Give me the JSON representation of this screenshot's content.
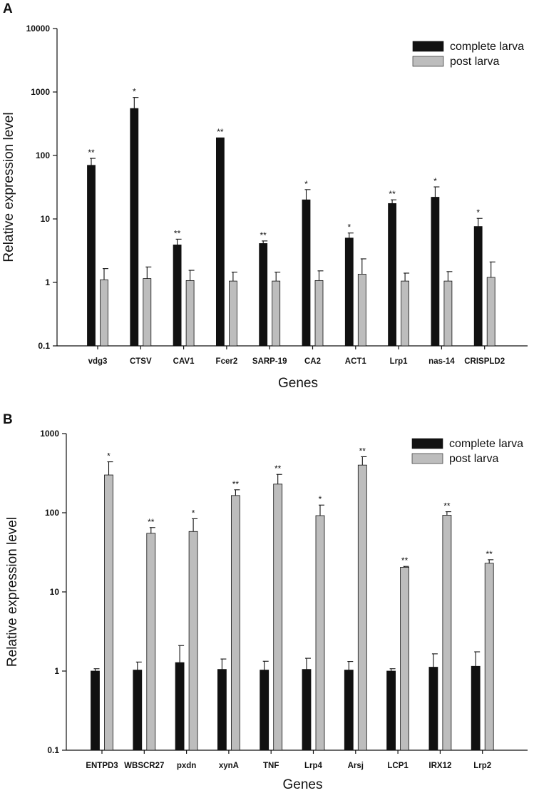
{
  "chart_data": [
    {
      "panel_label": "A",
      "type": "bar",
      "yscale": "log",
      "ylim": [
        0.1,
        10000
      ],
      "yticks": [
        "0.1",
        "1",
        "10",
        "100",
        "1000",
        "10000"
      ],
      "ylabel": "Relative expression level",
      "xlabel": "Genes",
      "legend_position": "top-right",
      "colors": {
        "complete larva": "#111111",
        "post larva": "#bdbdbd"
      },
      "categories": [
        "vdg3",
        "CTSV",
        "CAV1",
        "Fcer2",
        "SARP-19",
        "CA2",
        "ACT1",
        "Lrp1",
        "nas-14",
        "CRISPLD2"
      ],
      "series": [
        {
          "name": "complete larva",
          "values": [
            70,
            550,
            3.9,
            190,
            4.1,
            20,
            5.0,
            17.5,
            22,
            7.6
          ],
          "error_upper": [
            90,
            820,
            4.8,
            190,
            4.5,
            29,
            6.0,
            20,
            32,
            10.2
          ],
          "significance": [
            "**",
            "*",
            "**",
            "**",
            "**",
            "*",
            "*",
            "**",
            "*",
            "*"
          ]
        },
        {
          "name": "post larva",
          "values": [
            1.1,
            1.15,
            1.07,
            1.05,
            1.05,
            1.07,
            1.35,
            1.05,
            1.05,
            1.2
          ],
          "error_upper": [
            1.65,
            1.75,
            1.55,
            1.45,
            1.45,
            1.52,
            2.35,
            1.4,
            1.48,
            2.1
          ],
          "significance": [
            "",
            "",
            "",
            "",
            "",
            "",
            "",
            "",
            "",
            ""
          ]
        }
      ]
    },
    {
      "panel_label": "B",
      "type": "bar",
      "yscale": "log",
      "ylim": [
        0.1,
        1000
      ],
      "yticks": [
        "0.1",
        "1",
        "10",
        "100",
        "1000"
      ],
      "ylabel": "Relative expression level",
      "xlabel": "Genes",
      "legend_position": "top-right",
      "colors": {
        "complete larva": "#111111",
        "post larva": "#bdbdbd"
      },
      "categories": [
        "ENTPD3",
        "WBSCR27",
        "pxdn",
        "xynA",
        "TNF",
        "Lrp4",
        "Arsj",
        "LCP1",
        "IRX12",
        "Lrp2"
      ],
      "series": [
        {
          "name": "complete larva",
          "values": [
            1.0,
            1.03,
            1.28,
            1.05,
            1.03,
            1.05,
            1.03,
            1.0,
            1.12,
            1.15
          ],
          "error_upper": [
            1.07,
            1.3,
            2.1,
            1.42,
            1.33,
            1.45,
            1.32,
            1.07,
            1.65,
            1.75
          ],
          "significance": [
            "",
            "",
            "",
            "",
            "",
            "",
            "",
            "",
            "",
            ""
          ]
        },
        {
          "name": "post larva",
          "values": [
            300,
            55,
            58,
            165,
            230,
            92,
            400,
            20.5,
            93,
            23
          ],
          "error_upper": [
            440,
            65,
            84,
            195,
            305,
            125,
            510,
            21,
            103,
            25.5
          ],
          "significance": [
            "*",
            "**",
            "*",
            "**",
            "**",
            "*",
            "**",
            "**",
            "**",
            "**"
          ]
        }
      ]
    }
  ]
}
